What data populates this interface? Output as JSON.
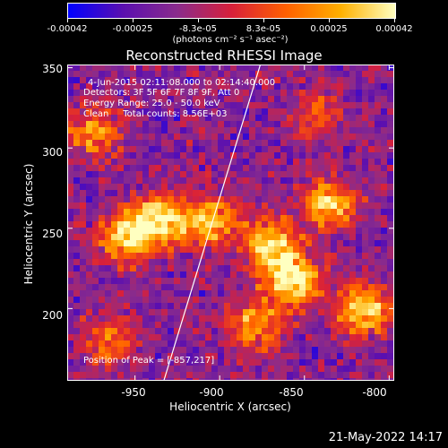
{
  "colorbar": {
    "tick_labels": [
      "-0.00042",
      "-0.00025",
      "-8.3e-05",
      "8.3e-05",
      "0.00025",
      "0.00042"
    ],
    "units": "(photons cm⁻² s⁻¹ asec⁻²)",
    "colors": [
      "#0000ff",
      "#5a0fb0",
      "#8a2b8c",
      "#d8203a",
      "#ff6000",
      "#ffb000",
      "#ffffc0"
    ]
  },
  "chart_data": {
    "type": "heatmap",
    "title": "Reconstructed RHESSI Image",
    "xlabel": "Heliocentric X (arcsec)",
    "ylabel": "Heliocentric Y (arcsec)",
    "xlim": [
      -990,
      -797
    ],
    "ylim": [
      155,
      352
    ],
    "xticks": [
      -950,
      -900,
      -850,
      -800
    ],
    "yticks": [
      200,
      250,
      300,
      350
    ],
    "colorbar_range": [
      -0.00042,
      0.00042
    ],
    "peak": [
      -857,
      217
    ],
    "limb_line": [
      [
        -933,
        155
      ],
      [
        -876,
        352
      ]
    ],
    "bright_regions": [
      {
        "x": -955,
        "y": 245,
        "level": 0.85
      },
      {
        "x": -935,
        "y": 255,
        "level": 0.9
      },
      {
        "x": -905,
        "y": 255,
        "level": 0.75
      },
      {
        "x": -870,
        "y": 240,
        "level": 0.85
      },
      {
        "x": -857,
        "y": 217,
        "level": 1.0
      },
      {
        "x": -835,
        "y": 265,
        "level": 0.8
      },
      {
        "x": -815,
        "y": 200,
        "level": 0.85
      },
      {
        "x": -880,
        "y": 190,
        "level": 0.7
      },
      {
        "x": -975,
        "y": 310,
        "level": 0.6
      },
      {
        "x": -845,
        "y": 320,
        "level": 0.45
      },
      {
        "x": -965,
        "y": 180,
        "level": 0.55
      }
    ]
  },
  "info": {
    "time": "4-Jun-2015 02:11:08.000 to 02:14:40.000",
    "detectors": "Detectors: 3F 5F 6F 7F 8F 9F, Att 0",
    "energy": "Energy Range: 25.0 - 50.0 keV",
    "clean": "Clean     Total counts: 8.56E+03",
    "peak": "Position of Peak = [-857,217]"
  },
  "axes": {
    "xtick_labels": [
      "-950",
      "-900",
      "-850",
      "-800"
    ],
    "ytick_labels": [
      "200",
      "250",
      "300",
      "350"
    ]
  },
  "footer": {
    "date": "21-May-2022 14:17"
  }
}
